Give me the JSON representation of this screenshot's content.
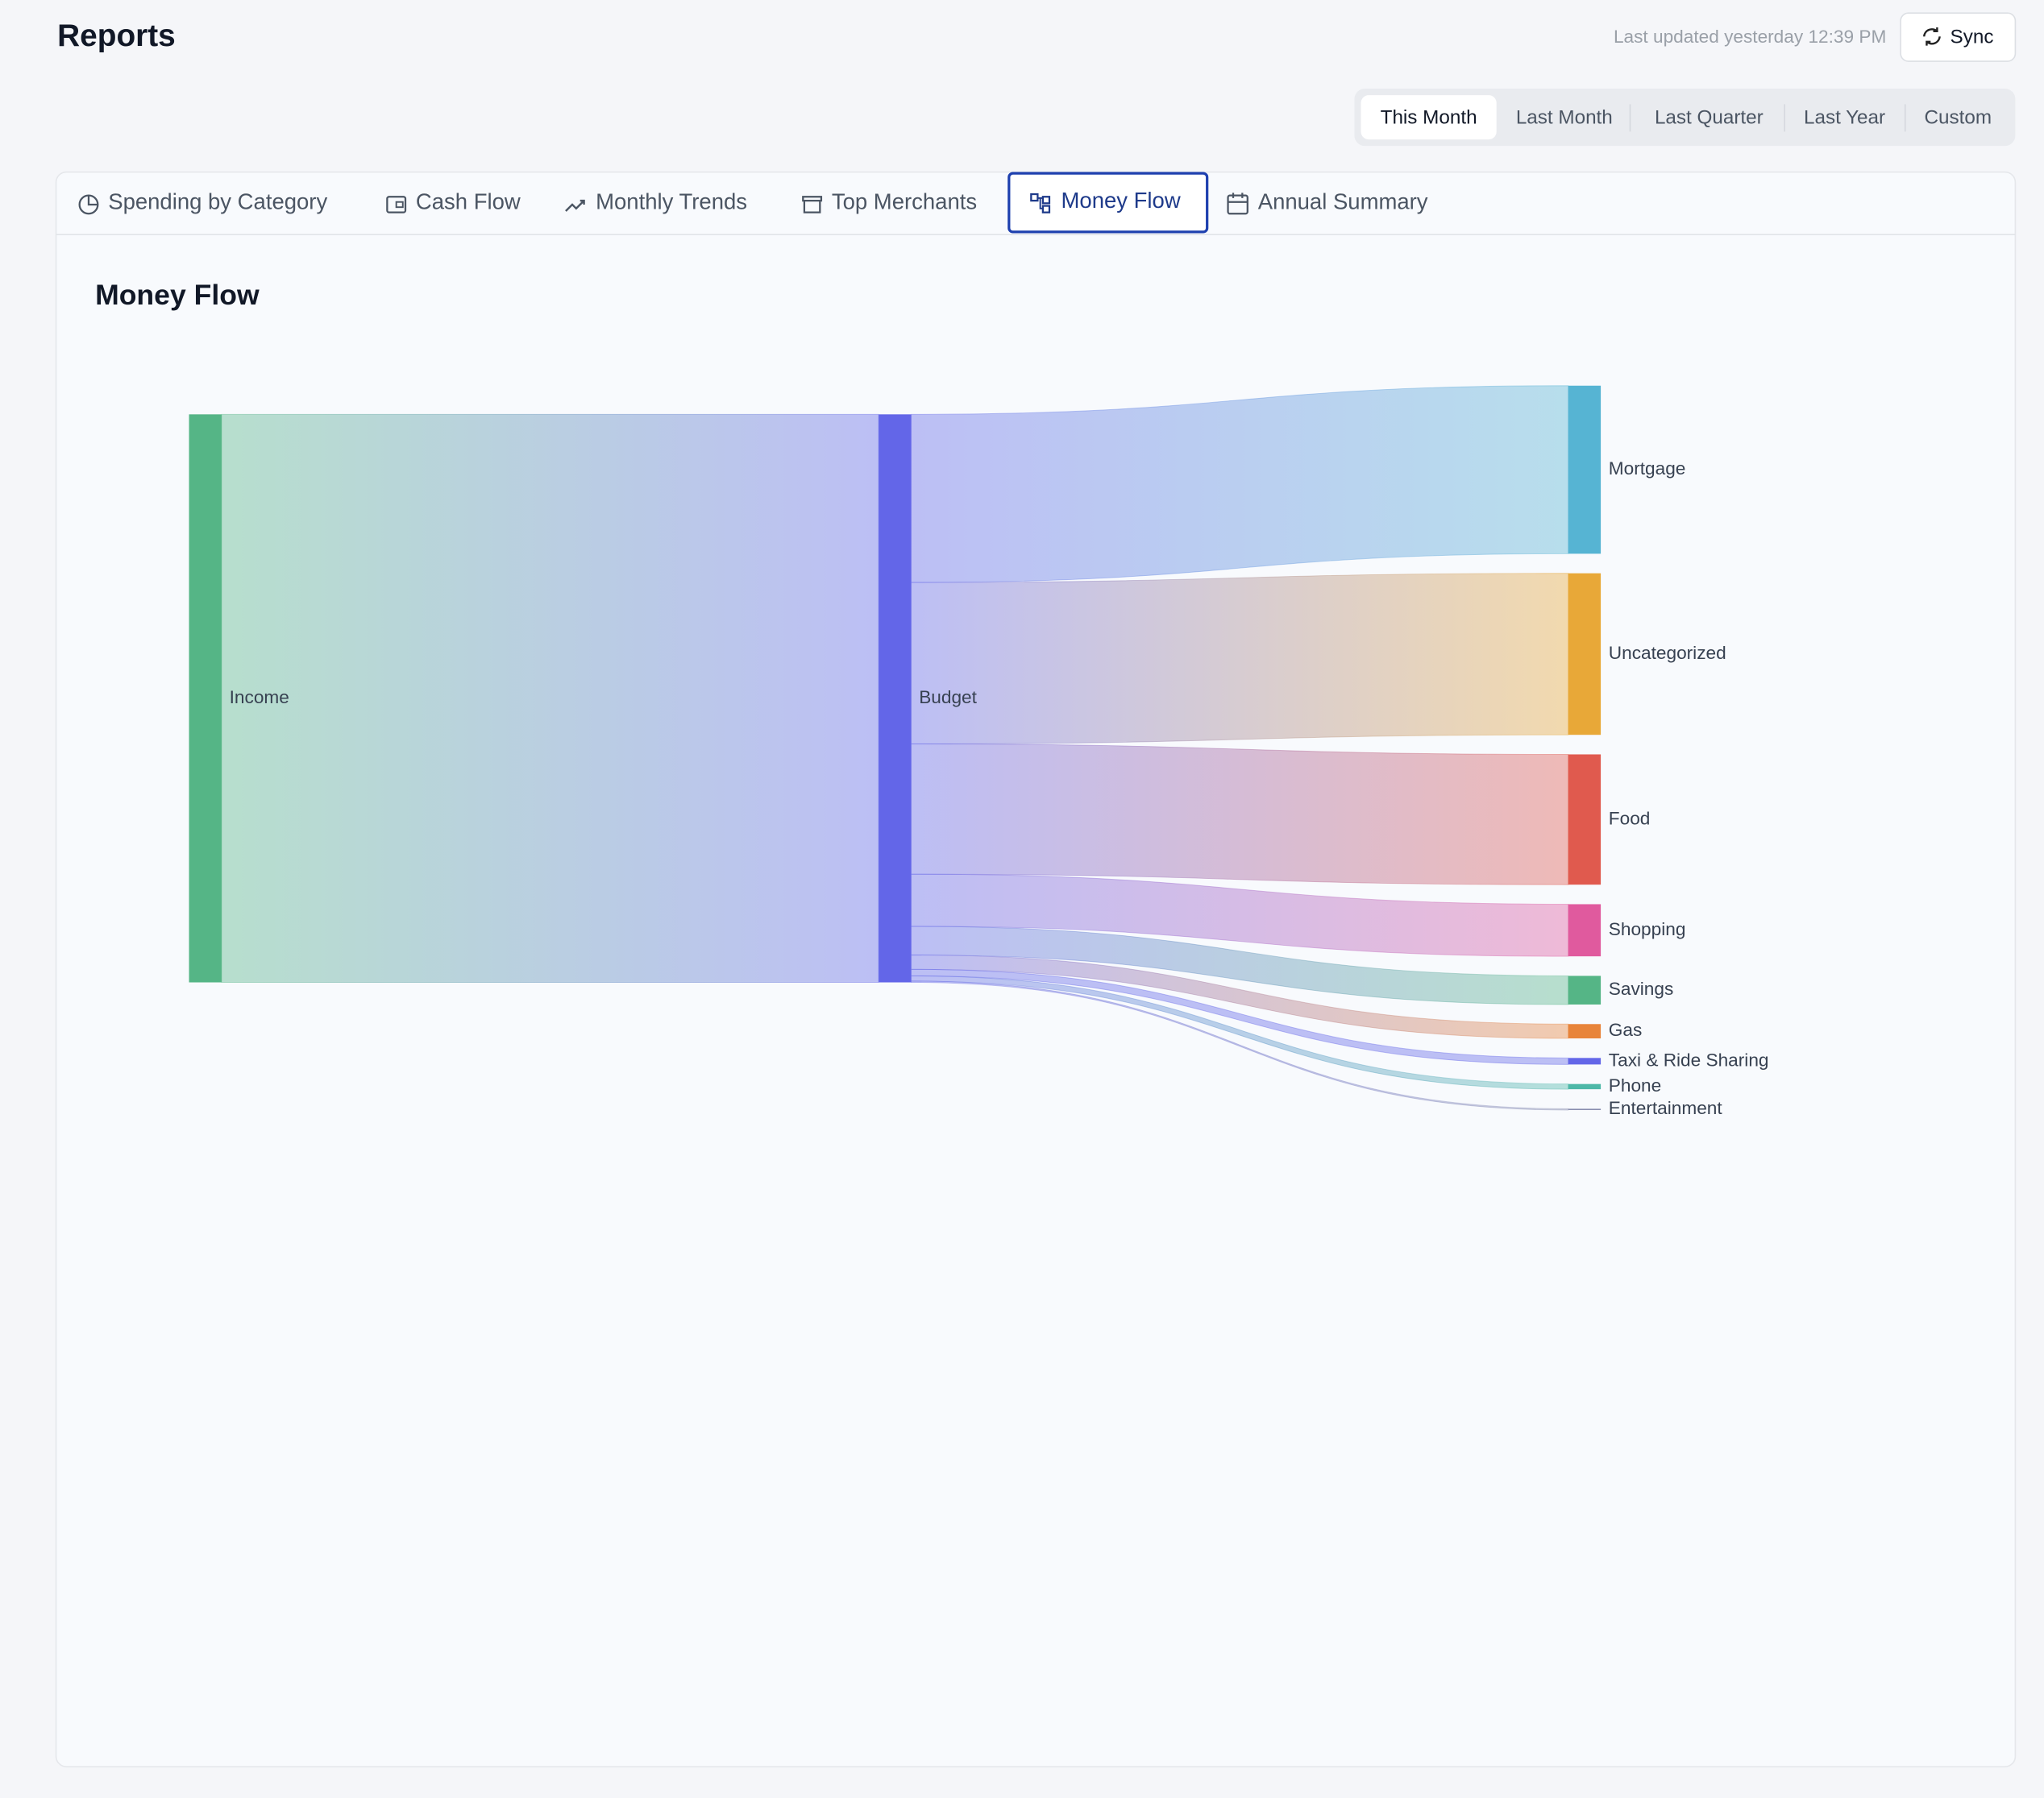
{
  "header": {
    "title": "Reports",
    "last_updated": "Last updated yesterday 12:39 PM",
    "sync": "Sync"
  },
  "periods": {
    "options": [
      "This Month",
      "Last Month",
      "Last Quarter",
      "Last Year",
      "Custom"
    ],
    "selected": 0
  },
  "tabs": {
    "options": [
      "Spending by Category",
      "Cash Flow",
      "Monthly Trends",
      "Top Merchants",
      "Money Flow",
      "Annual Summary"
    ],
    "selected": 4
  },
  "chart_data": {
    "type": "sankey",
    "title": "Money Flow",
    "nodes": [
      {
        "name": "Income",
        "color": "#55b586"
      },
      {
        "name": "Budget",
        "color": "#6366e8"
      },
      {
        "name": "Mortgage",
        "color": "#56b4d3"
      },
      {
        "name": "Uncategorized",
        "color": "#e8a838"
      },
      {
        "name": "Food",
        "color": "#e05a4e"
      },
      {
        "name": "Shopping",
        "color": "#e05a9e"
      },
      {
        "name": "Savings",
        "color": "#55b586"
      },
      {
        "name": "Gas",
        "color": "#e8843a"
      },
      {
        "name": "Taxi & Ride Sharing",
        "color": "#6366e8"
      },
      {
        "name": "Phone",
        "color": "#4db8a8"
      },
      {
        "name": "Entertainment",
        "color": "#8a8fb0"
      }
    ],
    "links": [
      {
        "source": 0,
        "target": 1,
        "value": 436
      },
      {
        "source": 1,
        "target": 2,
        "value": 129
      },
      {
        "source": 1,
        "target": 3,
        "value": 124
      },
      {
        "source": 1,
        "target": 4,
        "value": 100
      },
      {
        "source": 1,
        "target": 5,
        "value": 40
      },
      {
        "source": 1,
        "target": 6,
        "value": 22
      },
      {
        "source": 1,
        "target": 7,
        "value": 11
      },
      {
        "source": 1,
        "target": 8,
        "value": 5
      },
      {
        "source": 1,
        "target": 9,
        "value": 4
      },
      {
        "source": 1,
        "target": 10,
        "value": 1
      }
    ]
  }
}
